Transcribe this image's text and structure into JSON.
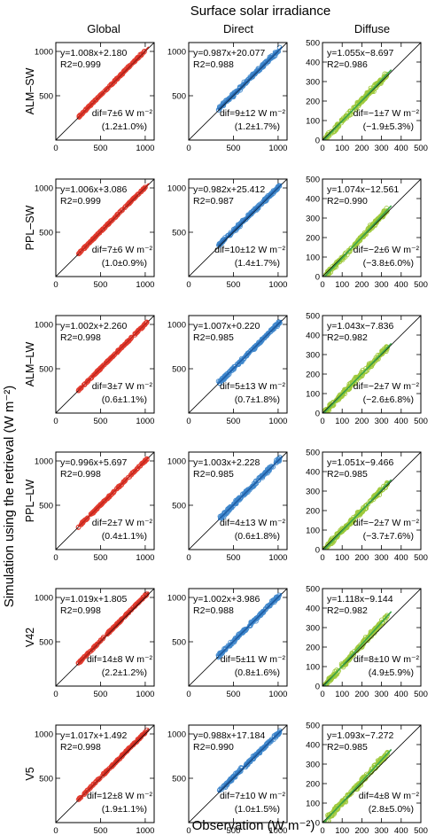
{
  "chart_data": {
    "type": "scatter",
    "title": "Surface solar irradiance",
    "xlabel": "Observation (W m⁻²)",
    "ylabel": "Simulation using the retrieval (W m⁻²)",
    "columns": [
      "Global",
      "Direct",
      "Diffuse"
    ],
    "rows": [
      "ALM–SW",
      "PPL–SW",
      "ALM–LW",
      "PPL–LW",
      "V42",
      "V5"
    ],
    "column_colors": [
      "#e23a2d",
      "#3f87cc",
      "#9ec93a"
    ],
    "fit_line_colors": [
      "#c4261c",
      "#1f5fa8",
      "#3aa64a"
    ],
    "axes": [
      {
        "xlim": [
          0,
          1100
        ],
        "ylim": [
          0,
          1100
        ],
        "xticks": [
          0,
          500,
          1000
        ],
        "yticks": [
          500,
          1000
        ],
        "data_range": [
          250,
          1020
        ]
      },
      {
        "xlim": [
          0,
          1100
        ],
        "ylim": [
          0,
          1100
        ],
        "xticks": [
          0,
          500,
          1000
        ],
        "yticks": [
          500,
          1000
        ],
        "data_range": [
          330,
          1020
        ]
      },
      {
        "xlim": [
          0,
          500
        ],
        "ylim": [
          0,
          500
        ],
        "xticks": [
          0,
          100,
          200,
          300,
          400,
          500
        ],
        "yticks": [
          0,
          100,
          200,
          300,
          400,
          500
        ],
        "data_range": [
          5,
          330
        ]
      }
    ],
    "panels": [
      {
        "row": 0,
        "col": 0,
        "equation": "y=1.008x+2.180",
        "r2": "R2=0.999",
        "dif": "dif=7±6 W m⁻²",
        "pct": "(1.2±1.0%)",
        "slope": 1.008,
        "intercept": 2.18
      },
      {
        "row": 0,
        "col": 1,
        "equation": "y=0.987x+20.077",
        "r2": "R2=0.988",
        "dif": "dif=9±12 W m⁻²",
        "pct": "(1.2±1.7%)",
        "slope": 0.987,
        "intercept": 20.077
      },
      {
        "row": 0,
        "col": 2,
        "equation": "y=1.055x−8.697",
        "r2": "R2=0.986",
        "dif": "dif=−1±7 W m⁻²",
        "pct": "(−1.9±5.3%)",
        "slope": 1.055,
        "intercept": -8.697
      },
      {
        "row": 1,
        "col": 0,
        "equation": "y=1.006x+3.086",
        "r2": "R2=0.999",
        "dif": "dif=7±6 W m⁻²",
        "pct": "(1.0±0.9%)",
        "slope": 1.006,
        "intercept": 3.086
      },
      {
        "row": 1,
        "col": 1,
        "equation": "y=0.982x+25.412",
        "r2": "R2=0.987",
        "dif": "dif=10±12 W m⁻²",
        "pct": "(1.4±1.7%)",
        "slope": 0.982,
        "intercept": 25.412
      },
      {
        "row": 1,
        "col": 2,
        "equation": "y=1.074x−12.561",
        "r2": "R2=0.990",
        "dif": "dif=−2±6 W m⁻²",
        "pct": "(−3.8±6.0%)",
        "slope": 1.074,
        "intercept": -12.561
      },
      {
        "row": 2,
        "col": 0,
        "equation": "y=1.002x+2.260",
        "r2": "R2=0.998",
        "dif": "dif=3±7 W m⁻²",
        "pct": "(0.6±1.1%)",
        "slope": 1.002,
        "intercept": 2.26
      },
      {
        "row": 2,
        "col": 1,
        "equation": "y=1.007x+0.220",
        "r2": "R2=0.985",
        "dif": "dif=5±13 W m⁻²",
        "pct": "(0.7±1.8%)",
        "slope": 1.007,
        "intercept": 0.22
      },
      {
        "row": 2,
        "col": 2,
        "equation": "y=1.043x−7.836",
        "r2": "R2=0.982",
        "dif": "dif=−2±7 W m⁻²",
        "pct": "(−2.6±6.8%)",
        "slope": 1.043,
        "intercept": -7.836
      },
      {
        "row": 3,
        "col": 0,
        "equation": "y=0.996x+5.697",
        "r2": "R2=0.998",
        "dif": "dif=2±7 W m⁻²",
        "pct": "(0.4±1.1%)",
        "slope": 0.996,
        "intercept": 5.697
      },
      {
        "row": 3,
        "col": 1,
        "equation": "y=1.003x+2.228",
        "r2": "R2=0.985",
        "dif": "dif=4±13 W m⁻²",
        "pct": "(0.6±1.8%)",
        "slope": 1.003,
        "intercept": 2.228
      },
      {
        "row": 3,
        "col": 2,
        "equation": "y=1.051x−9.466",
        "r2": "R2=0.985",
        "dif": "dif=−2±7 W m⁻²",
        "pct": "(−3.7±7.6%)",
        "slope": 1.051,
        "intercept": -9.466
      },
      {
        "row": 4,
        "col": 0,
        "equation": "y=1.019x+1.805",
        "r2": "R2=0.998",
        "dif": "dif=14±8 W m⁻²",
        "pct": "(2.2±1.2%)",
        "slope": 1.019,
        "intercept": 1.805
      },
      {
        "row": 4,
        "col": 1,
        "equation": "y=1.002x+3.986",
        "r2": "R2=0.988",
        "dif": "dif=5±11 W m⁻²",
        "pct": "(0.8±1.6%)",
        "slope": 1.002,
        "intercept": 3.986
      },
      {
        "row": 4,
        "col": 2,
        "equation": "y=1.118x−9.144",
        "r2": "R2=0.982",
        "dif": "dif=8±10 W m⁻²",
        "pct": "(4.9±5.9%)",
        "slope": 1.118,
        "intercept": -9.144
      },
      {
        "row": 5,
        "col": 0,
        "equation": "y=1.017x+1.492",
        "r2": "R2=0.998",
        "dif": "dif=12±8 W m⁻²",
        "pct": "(1.9±1.1%)",
        "slope": 1.017,
        "intercept": 1.492
      },
      {
        "row": 5,
        "col": 1,
        "equation": "y=0.988x+17.184",
        "r2": "R2=0.990",
        "dif": "dif=7±10 W m⁻²",
        "pct": "(1.0±1.5%)",
        "slope": 0.988,
        "intercept": 17.184
      },
      {
        "row": 5,
        "col": 2,
        "equation": "y=1.093x−7.272",
        "r2": "R2=0.985",
        "dif": "dif=4±8 W m⁻²",
        "pct": "(2.8±5.0%)",
        "slope": 1.093,
        "intercept": -7.272
      }
    ]
  }
}
